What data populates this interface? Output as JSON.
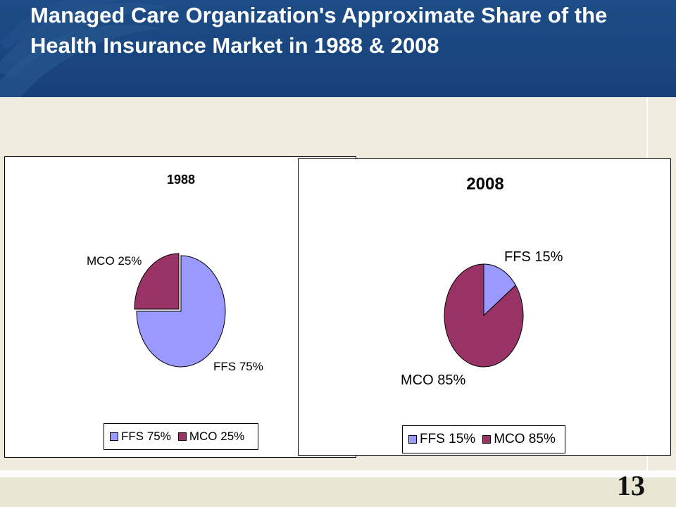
{
  "slide": {
    "title": "Managed Care Organization's  Approximate Share of the Health Insurance Market in 1988 & 2008",
    "page_number": "13"
  },
  "colors": {
    "ffs": "#9999ff",
    "mco": "#993366",
    "header": "#1d4c86",
    "background": "#efecdf"
  },
  "chart_data": [
    {
      "type": "pie",
      "title": "1988",
      "categories": [
        "FFS",
        "MCO"
      ],
      "values": [
        75,
        25
      ],
      "labels": [
        "FFS 75%",
        "MCO 25%"
      ],
      "legend": [
        "FFS 75%",
        "MCO 25%"
      ],
      "legend_position": "bottom"
    },
    {
      "type": "pie",
      "title": "2008",
      "categories": [
        "FFS",
        "MCO"
      ],
      "values": [
        15,
        85
      ],
      "labels": [
        "FFS 15%",
        "MCO 85%"
      ],
      "legend": [
        "FFS 15%",
        "MCO 85%"
      ],
      "legend_position": "bottom"
    }
  ]
}
